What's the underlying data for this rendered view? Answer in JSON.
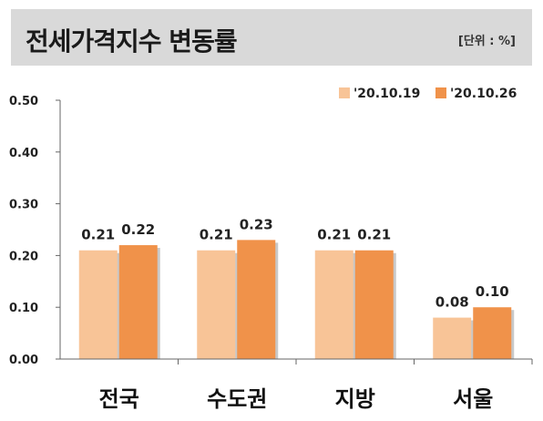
{
  "header": {
    "title": "전세가격지수 변동률",
    "unit": "[단위 : %]"
  },
  "colors": {
    "header_bg": "#d9d9d9",
    "series1": "#f8c497",
    "series2": "#f0924a"
  },
  "chart_data": {
    "type": "bar",
    "title": "전세가격지수 변동률",
    "unit_label": "[단위 : %]",
    "categories": [
      "전국",
      "수도권",
      "지방",
      "서울"
    ],
    "series": [
      {
        "name": "'20.10.19",
        "values": [
          0.21,
          0.21,
          0.21,
          0.08
        ],
        "color": "#f8c497"
      },
      {
        "name": "'20.10.26",
        "values": [
          0.22,
          0.23,
          0.21,
          0.1
        ],
        "color": "#f0924a"
      }
    ],
    "ylim": [
      0,
      0.5
    ],
    "yticks": [
      "0.00",
      "0.10",
      "0.20",
      "0.30",
      "0.40",
      "0.50"
    ],
    "legend_position": "top-right",
    "grid": false
  }
}
